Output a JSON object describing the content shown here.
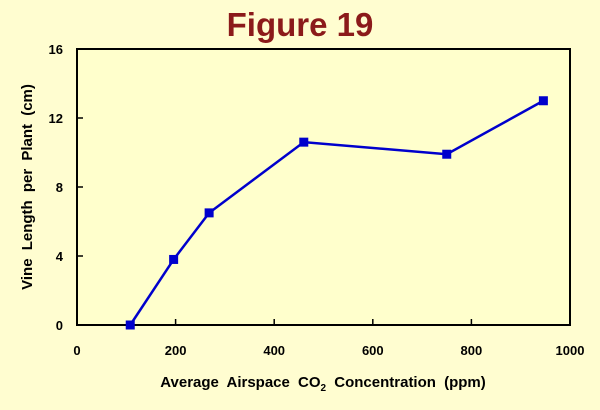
{
  "chart_data": {
    "type": "line",
    "title": "Figure 19",
    "xlabel": "Average Airspace CO2 Concentration (ppm)",
    "xlabel_parts": {
      "before": "Average Airspace CO",
      "sub": "2",
      "after": " Concentration (ppm)"
    },
    "ylabel": "Vine Length per Plant (cm)",
    "xlim": [
      0,
      1000
    ],
    "ylim": [
      0,
      16
    ],
    "xticks": [
      0,
      200,
      400,
      600,
      800,
      1000
    ],
    "yticks": [
      0,
      4,
      8,
      12,
      16
    ],
    "grid": false,
    "series": [
      {
        "name": "Vine Length",
        "color": "#0000cc",
        "x": [
          108,
          196,
          268,
          460,
          750,
          946
        ],
        "y": [
          0.0,
          3.8,
          6.5,
          10.6,
          9.9,
          13.0
        ]
      }
    ]
  }
}
